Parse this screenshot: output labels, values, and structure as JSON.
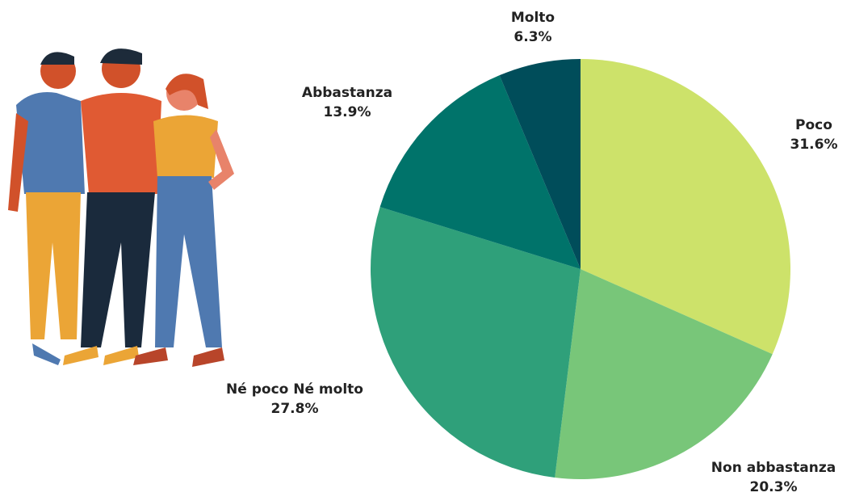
{
  "chart_data": {
    "type": "pie",
    "categories": [
      "Poco",
      "Non abbastanza",
      "Né poco Né molto",
      "Abbastanza",
      "Molto"
    ],
    "values": [
      31.6,
      20.3,
      27.8,
      13.9,
      6.3
    ],
    "value_labels": [
      "31.6%",
      "20.3%",
      "27.8%",
      "13.9%",
      "6.3%"
    ],
    "colors": [
      "#cde26a",
      "#78c679",
      "#2fa07a",
      "#00736a",
      "#004d5a"
    ]
  }
}
